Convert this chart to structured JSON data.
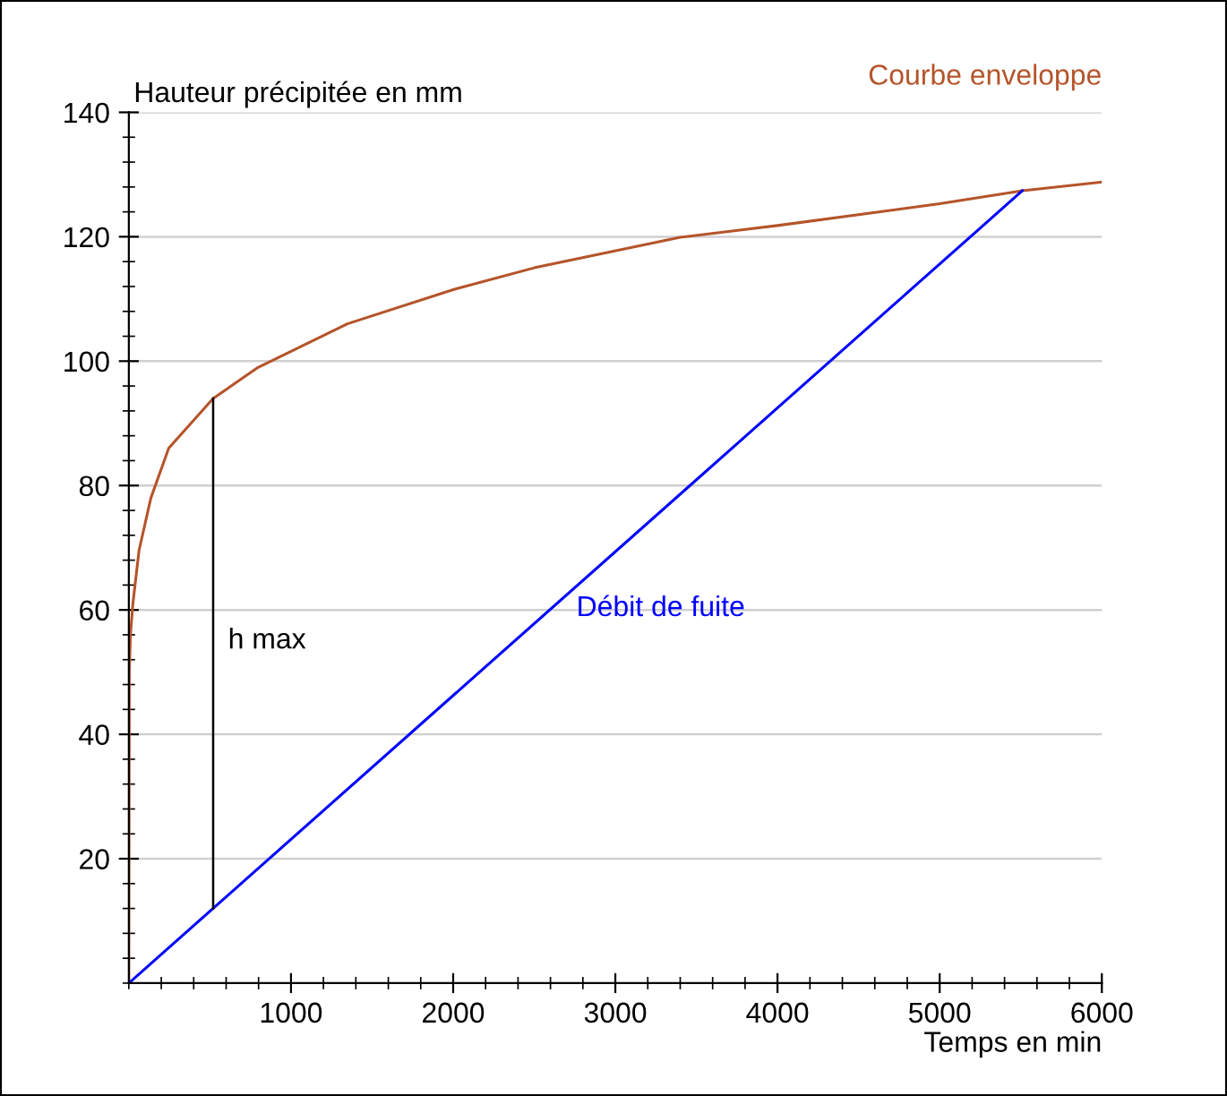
{
  "chart_data": {
    "type": "line",
    "xlabel": "Temps en min",
    "ylabel": "Hauteur précipitée en mm",
    "xlim": [
      0,
      6000
    ],
    "ylim": [
      0,
      140
    ],
    "xticks": [
      1000,
      2000,
      3000,
      4000,
      5000,
      6000
    ],
    "yticks": [
      20,
      40,
      60,
      80,
      100,
      120,
      140
    ],
    "grid": "y",
    "legend": false,
    "marker": "none",
    "line_style": "solid",
    "series": [
      {
        "name": "Courbe enveloppe",
        "color": "#b5542a",
        "x": [
          0,
          3,
          10,
          25,
          63,
          136,
          246,
          520,
          797,
          1348,
          2000,
          2500,
          3400,
          4000,
          5000,
          5510,
          6000
        ],
        "values": [
          0,
          50,
          56,
          61,
          69.6,
          78,
          86,
          94,
          99,
          106,
          111.5,
          115,
          119.9,
          121.8,
          125.3,
          127.4,
          128.8
        ]
      },
      {
        "name": "Débit de fuite",
        "color": "#0000ff",
        "x": [
          0,
          5510
        ],
        "values": [
          0,
          127.4
        ]
      },
      {
        "color": "#000000",
        "x": [
          520,
          520
        ],
        "values": [
          12,
          94
        ]
      }
    ],
    "annotations": [
      {
        "text": "h max",
        "x": 520,
        "y": 55
      }
    ]
  }
}
